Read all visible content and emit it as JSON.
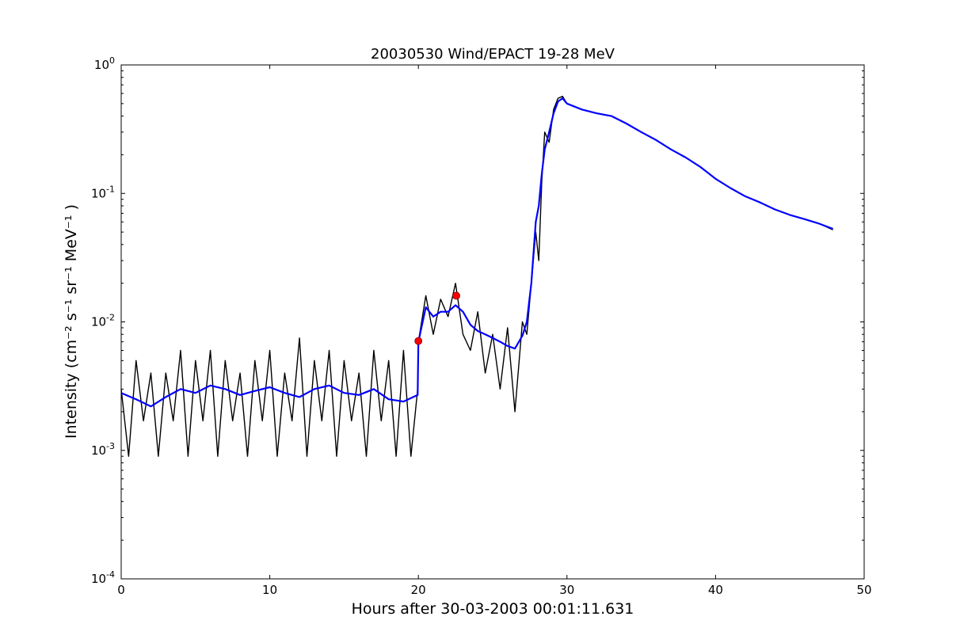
{
  "chart_data": {
    "type": "line",
    "title": "20030530 Wind/EPACT 19-28 MeV",
    "xlabel": "Hours after 30-03-2003 00:01:11.631",
    "ylabel": "Intensity (cm⁻² s⁻¹ sr⁻¹ MeV⁻¹ )",
    "xlim": [
      0,
      50
    ],
    "ylim": [
      0.0001,
      1
    ],
    "yscale": "log",
    "grid": false,
    "x_ticks": [
      0,
      10,
      20,
      30,
      40,
      50
    ],
    "x_tick_labels": [
      "0",
      "10",
      "20",
      "30",
      "40",
      "50"
    ],
    "y_ticks": [
      0.0001,
      0.001,
      0.01,
      0.1,
      1
    ],
    "y_tick_labels": [
      {
        "base": "10",
        "exp": "-4"
      },
      {
        "base": "10",
        "exp": "-3"
      },
      {
        "base": "10",
        "exp": "-2"
      },
      {
        "base": "10",
        "exp": "-1"
      },
      {
        "base": "10",
        "exp": "0"
      }
    ],
    "series": [
      {
        "color": "#000000",
        "kind": "raw",
        "x": [
          0,
          0.5,
          1,
          1.5,
          2,
          2.5,
          3,
          3.5,
          4,
          4.5,
          5,
          5.5,
          6,
          6.5,
          7,
          7.5,
          8,
          8.5,
          9,
          9.5,
          10,
          10.5,
          11,
          11.5,
          12,
          12.5,
          13,
          13.5,
          14,
          14.5,
          15,
          15.5,
          16,
          16.5,
          17,
          17.5,
          18,
          18.5,
          19,
          19.5,
          19.95,
          20,
          20.5,
          21,
          21.5,
          22,
          22.5,
          23,
          23.5,
          24,
          24.5,
          25,
          25.5,
          26,
          26.5,
          27,
          27.3,
          27.6,
          27.9,
          28.1,
          28.3,
          28.5,
          28.8,
          29.1,
          29.4,
          29.7,
          30,
          31,
          32,
          33,
          34,
          35,
          36,
          37,
          38,
          39,
          40,
          41,
          42,
          43,
          44,
          45,
          46,
          47,
          47.9
        ],
        "y": [
          0.003,
          0.0009,
          0.005,
          0.0017,
          0.004,
          0.0009,
          0.004,
          0.0017,
          0.006,
          0.0009,
          0.005,
          0.0017,
          0.006,
          0.0009,
          0.005,
          0.0017,
          0.004,
          0.0009,
          0.005,
          0.0017,
          0.006,
          0.0009,
          0.004,
          0.0017,
          0.0075,
          0.0009,
          0.005,
          0.0017,
          0.006,
          0.0009,
          0.005,
          0.0017,
          0.004,
          0.0009,
          0.006,
          0.0017,
          0.005,
          0.0009,
          0.006,
          0.0009,
          0.003,
          0.007,
          0.016,
          0.008,
          0.015,
          0.011,
          0.02,
          0.008,
          0.006,
          0.012,
          0.004,
          0.008,
          0.003,
          0.009,
          0.002,
          0.01,
          0.008,
          0.02,
          0.05,
          0.03,
          0.12,
          0.3,
          0.25,
          0.45,
          0.55,
          0.57,
          0.5,
          0.45,
          0.42,
          0.4,
          0.35,
          0.3,
          0.26,
          0.22,
          0.19,
          0.16,
          0.13,
          0.11,
          0.095,
          0.085,
          0.075,
          0.068,
          0.063,
          0.058,
          0.052
        ]
      },
      {
        "color": "#0000ff",
        "kind": "smoothed",
        "x": [
          0,
          1,
          2,
          3,
          4,
          5,
          6,
          7,
          8,
          9,
          10,
          11,
          12,
          13,
          14,
          15,
          16,
          17,
          18,
          19,
          19.95,
          20,
          20.5,
          21,
          21.5,
          22,
          22.5,
          23,
          23.5,
          24,
          24.5,
          25,
          25.5,
          26,
          26.5,
          27,
          27.3,
          27.6,
          27.9,
          28.1,
          28.3,
          28.5,
          28.8,
          29.1,
          29.4,
          29.7,
          30,
          31,
          32,
          33,
          34,
          35,
          36,
          37,
          38,
          39,
          40,
          41,
          42,
          43,
          44,
          45,
          46,
          47,
          47.9
        ],
        "y": [
          0.0028,
          0.0025,
          0.0022,
          0.0026,
          0.003,
          0.0028,
          0.0032,
          0.003,
          0.0027,
          0.0029,
          0.0031,
          0.0028,
          0.0026,
          0.003,
          0.0032,
          0.0028,
          0.0027,
          0.003,
          0.0025,
          0.0024,
          0.0027,
          0.007,
          0.013,
          0.011,
          0.012,
          0.012,
          0.0135,
          0.012,
          0.0095,
          0.0085,
          0.008,
          0.0075,
          0.007,
          0.0065,
          0.0062,
          0.0078,
          0.01,
          0.02,
          0.06,
          0.08,
          0.14,
          0.22,
          0.3,
          0.42,
          0.52,
          0.55,
          0.5,
          0.45,
          0.42,
          0.4,
          0.35,
          0.3,
          0.26,
          0.22,
          0.19,
          0.16,
          0.13,
          0.11,
          0.095,
          0.085,
          0.075,
          0.068,
          0.063,
          0.058,
          0.053
        ]
      }
    ],
    "markers": {
      "color": "#ff0000",
      "points": [
        {
          "x": 20.0,
          "y": 0.0071
        },
        {
          "x": 22.55,
          "y": 0.016
        }
      ]
    }
  }
}
